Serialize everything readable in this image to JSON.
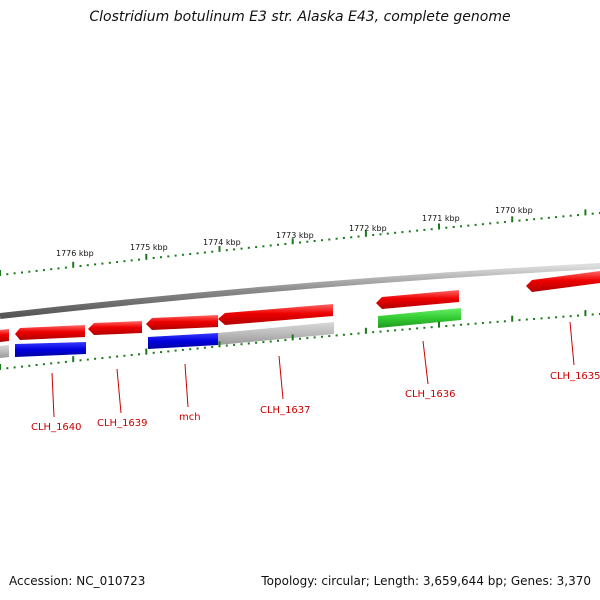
{
  "title": "Clostridium botulinum E3 str. Alaska E43, complete genome",
  "footer": {
    "accession": "Accession: NC_010723",
    "topology": "Topology: circular; Length: 3,659,644 bp; Genes: 3,370"
  },
  "colors": {
    "forward_gene": "#ee0000",
    "reverse_gene_blue": "#0000dd",
    "reverse_gene_grey": "#bbbbbb",
    "reverse_gene_green": "#33cc33",
    "backbone": "#888888",
    "tick": "#1a7a1a",
    "label": "#cc0000"
  },
  "scale_ticks": [
    "1776 kbp",
    "1775 kbp",
    "1774 kbp",
    "1773 kbp",
    "1772 kbp",
    "1771 kbp",
    "1770 kbp"
  ],
  "gene_labels": [
    "CLH_1640",
    "CLH_1639",
    "mch",
    "CLH_1637",
    "CLH_1636",
    "CLH_1635"
  ]
}
